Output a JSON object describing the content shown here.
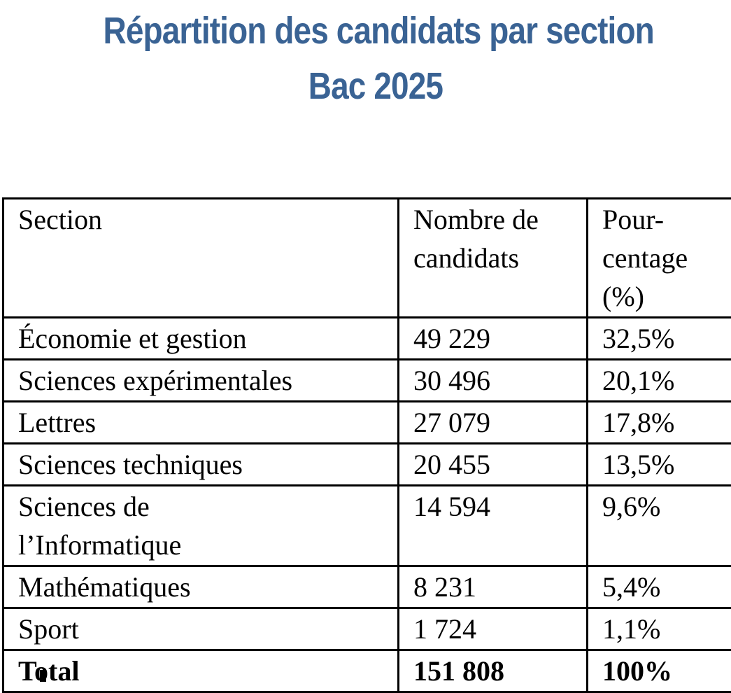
{
  "title": {
    "line1": "Répartition des candidats par section",
    "line2": "Bac 2025",
    "color": "#3a6394"
  },
  "table": {
    "headers": [
      "Section",
      "Nombre de\ncandidats",
      "Pour-\ncentage\n(%)"
    ],
    "rows": [
      [
        "Économie et gestion",
        "49 229",
        "32,5%"
      ],
      [
        "Sciences expérimentales",
        "30 496",
        "20,1%"
      ],
      [
        "Lettres",
        "27 079",
        "17,8%"
      ],
      [
        "Sciences techniques",
        "20 455",
        "13,5%"
      ],
      [
        "Sciences de\nl’Informatique",
        "14 594",
        "9,6%"
      ],
      [
        "Mathématiques",
        "8 231",
        "5,4%"
      ],
      [
        "Sport",
        "1 724",
        "1,1%"
      ],
      [
        "Total",
        "151 808",
        "100%"
      ]
    ]
  },
  "chart_data": {
    "type": "table",
    "title": "Répartition des candidats par section Bac 2025",
    "columns": [
      "Section",
      "Nombre de candidats",
      "Pourcentage (%)"
    ],
    "rows": [
      {
        "section": "Économie et gestion",
        "candidats": 49229,
        "pourcentage": 32.5
      },
      {
        "section": "Sciences expérimentales",
        "candidats": 30496,
        "pourcentage": 20.1
      },
      {
        "section": "Lettres",
        "candidats": 27079,
        "pourcentage": 17.8
      },
      {
        "section": "Sciences techniques",
        "candidats": 20455,
        "pourcentage": 13.5
      },
      {
        "section": "Sciences de l’Informatique",
        "candidats": 14594,
        "pourcentage": 9.6
      },
      {
        "section": "Mathématiques",
        "candidats": 8231,
        "pourcentage": 5.4
      },
      {
        "section": "Sport",
        "candidats": 1724,
        "pourcentage": 1.1
      },
      {
        "section": "Total",
        "candidats": 151808,
        "pourcentage": 100
      }
    ]
  }
}
